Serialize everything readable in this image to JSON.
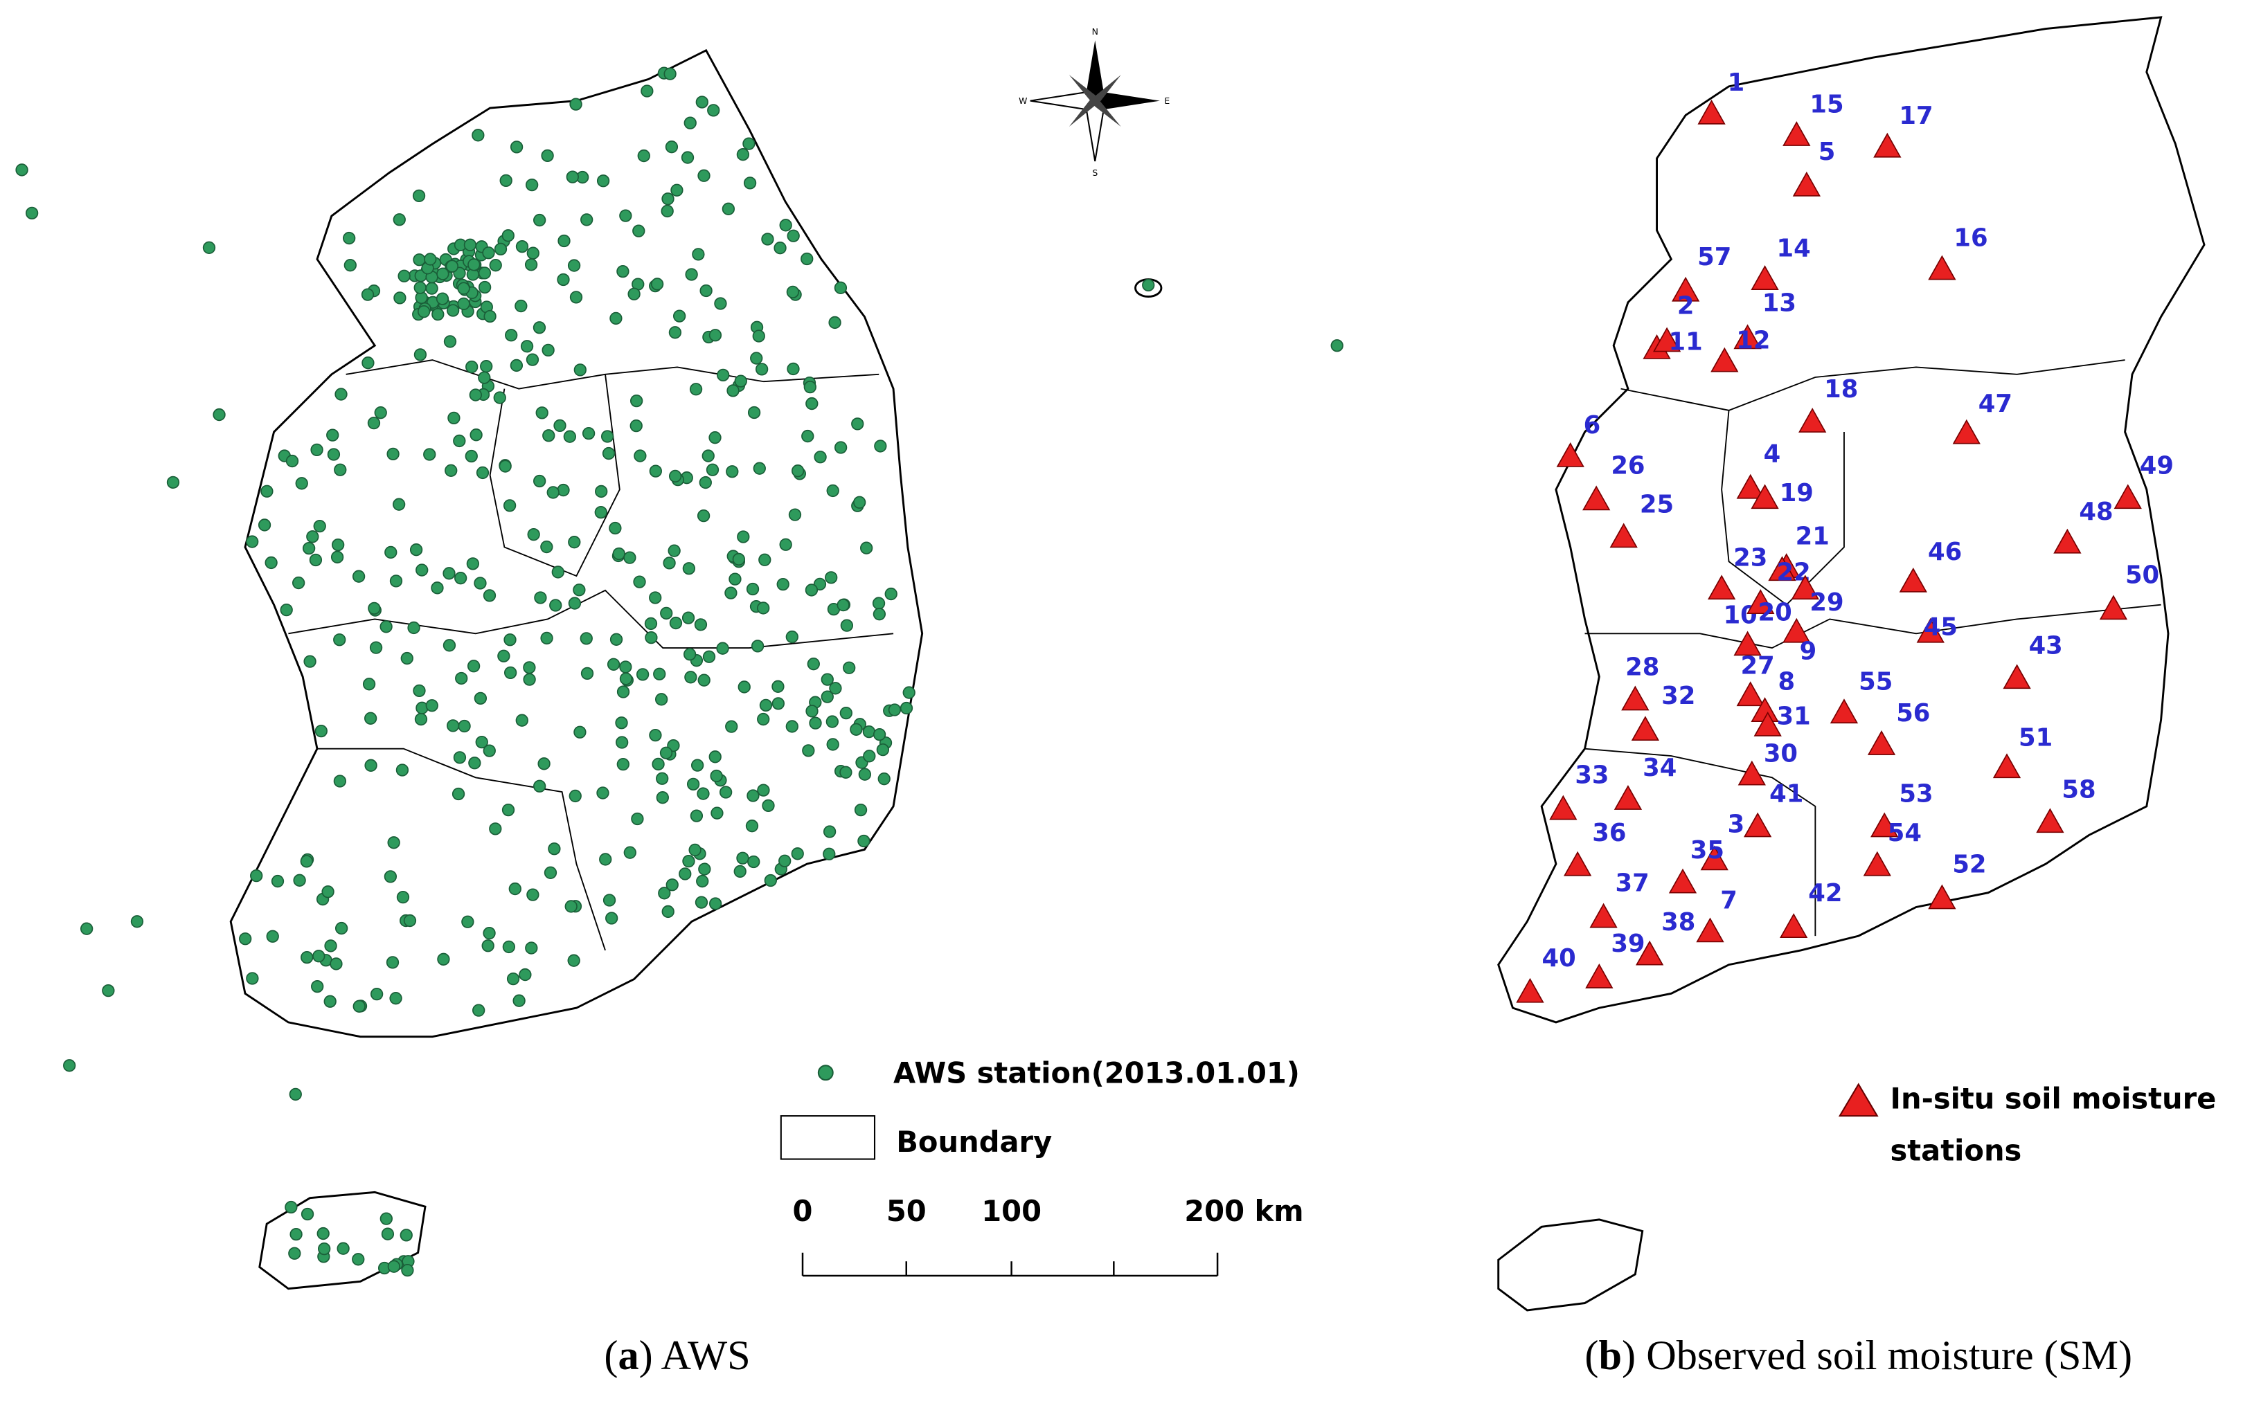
{
  "panels": [
    {
      "caption": [
        "(",
        "a",
        ") AWS"
      ],
      "legend": {
        "station": "AWS station(2013.01.01)",
        "boundary": "Boundary"
      },
      "scale_labels": [
        "0",
        "50",
        "100",
        "200 km"
      ],
      "compass": [
        "N",
        "W",
        "E",
        "S"
      ]
    },
    {
      "caption": [
        "(",
        "b",
        ") Observed soil moisture (SM)"
      ],
      "legend": [
        "In-situ soil moisture",
        "stations"
      ],
      "station_labels": [
        "1",
        "15",
        "17",
        "5",
        "16",
        "14",
        "57",
        "2",
        "13",
        "11",
        "12",
        "18",
        "47",
        "6",
        "26",
        "4",
        "25",
        "19",
        "49",
        "48",
        "21",
        "23",
        "22",
        "46",
        "50",
        "29",
        "10",
        "20",
        "45",
        "9",
        "43",
        "27",
        "28",
        "8",
        "55",
        "32",
        "31",
        "56",
        "51",
        "30",
        "33",
        "34",
        "41",
        "53",
        "58",
        "36",
        "3",
        "35",
        "54",
        "37",
        "7",
        "52",
        "42",
        "38",
        "39",
        "40"
      ]
    }
  ]
}
